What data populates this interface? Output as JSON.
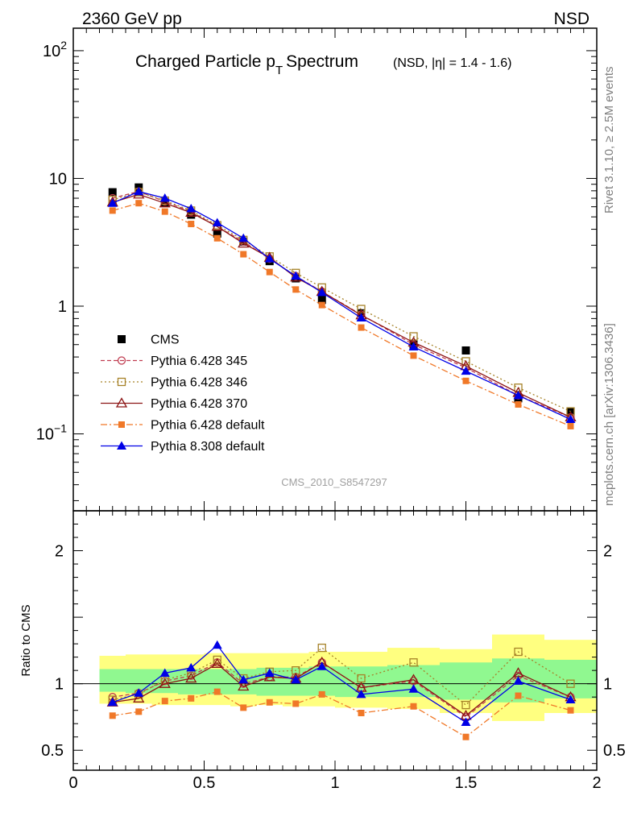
{
  "header": {
    "left": "2360 GeV pp",
    "right": "NSD"
  },
  "side_labels": {
    "rivet": "Rivet 3.1.10, ≥ 2.5M events",
    "mcplots": "mcplots.cern.ch [arXiv:1306.3436]"
  },
  "chart_data": [
    {
      "type": "line",
      "title": "Charged Particle p",
      "title_sub": "T",
      "title_tail": "Spectrum",
      "subtitle": "(NSD, |η| = 1.4 - 1.6)",
      "watermark": "CMS_2010_S8547297",
      "yscale": "log",
      "xlim": [
        0,
        2
      ],
      "ylim": [
        0.025,
        150
      ],
      "yticks": [
        {
          "value": 100,
          "base": "10",
          "exp": "2"
        },
        {
          "value": 10,
          "base": "10",
          "exp": ""
        },
        {
          "value": 1,
          "base": "1",
          "exp": ""
        },
        {
          "value": 0.1,
          "base": "10",
          "exp": "−1"
        }
      ],
      "legend_position": "bottom-left",
      "x": [
        0.15,
        0.25,
        0.35,
        0.45,
        0.55,
        0.65,
        0.75,
        0.85,
        0.95,
        1.1,
        1.3,
        1.5,
        1.7,
        1.9
      ],
      "series": [
        {
          "name": "CMS",
          "color": "#000000",
          "marker": "square-filled",
          "line": "none",
          "values": [
            7.8,
            8.5,
            6.5,
            5.2,
            3.7,
            3.2,
            2.25,
            1.65,
            1.12,
            0.88,
            0.5,
            0.45,
            0.19,
            0.15
          ]
        },
        {
          "name": "Pythia 6.428 345",
          "color": "#c03c50",
          "marker": "circle-open",
          "line": "dashed",
          "values": [
            7.0,
            7.9,
            6.6,
            5.5,
            4.2,
            3.2,
            2.35,
            1.72,
            1.3,
            0.86,
            0.5,
            0.33,
            0.2,
            0.135
          ]
        },
        {
          "name": "Pythia 6.428 346",
          "color": "#a68228",
          "marker": "square-open",
          "line": "dotted",
          "values": [
            6.8,
            7.8,
            6.7,
            5.6,
            4.3,
            3.3,
            2.45,
            1.82,
            1.4,
            0.95,
            0.58,
            0.37,
            0.23,
            0.15
          ]
        },
        {
          "name": "Pythia 6.428 370",
          "color": "#8c1414",
          "marker": "triangle-open",
          "line": "solid",
          "values": [
            6.5,
            7.5,
            6.4,
            5.4,
            4.2,
            3.1,
            2.4,
            1.68,
            1.3,
            0.85,
            0.52,
            0.34,
            0.21,
            0.135
          ]
        },
        {
          "name": "Pythia 6.428 default",
          "color": "#f07828",
          "marker": "square-filled-small",
          "line": "dashdot",
          "values": [
            5.6,
            6.4,
            5.5,
            4.4,
            3.4,
            2.55,
            1.85,
            1.35,
            1.02,
            0.68,
            0.41,
            0.26,
            0.17,
            0.115
          ]
        },
        {
          "name": "Pythia 8.308 default",
          "color": "#0000e6",
          "marker": "triangle-filled",
          "line": "solid",
          "values": [
            6.4,
            7.9,
            7.0,
            5.8,
            4.5,
            3.4,
            2.35,
            1.72,
            1.28,
            0.81,
            0.48,
            0.31,
            0.2,
            0.13
          ]
        }
      ]
    },
    {
      "type": "line",
      "ylabel": "Ratio to CMS",
      "xlim": [
        0,
        2
      ],
      "ylim": [
        0.35,
        2.3
      ],
      "xticks": [
        "0",
        "0.5",
        "1",
        "1.5",
        "2"
      ],
      "yticks": [
        "0.5",
        "1",
        "2"
      ],
      "bands": {
        "yellow_color": "#ffff80",
        "green_color": "#90f890",
        "edges": [
          0.1,
          0.2,
          0.3,
          0.4,
          0.5,
          0.6,
          0.7,
          0.8,
          0.9,
          1.0,
          1.2,
          1.4,
          1.6,
          1.8,
          2.0
        ],
        "yellow_lo": [
          0.85,
          0.85,
          0.84,
          0.84,
          0.84,
          0.83,
          0.84,
          0.83,
          0.83,
          0.82,
          0.81,
          0.78,
          0.72,
          0.78
        ],
        "yellow_hi": [
          1.21,
          1.22,
          1.22,
          1.22,
          1.23,
          1.23,
          1.23,
          1.23,
          1.24,
          1.24,
          1.27,
          1.26,
          1.37,
          1.33
        ],
        "green_lo": [
          0.94,
          0.93,
          0.93,
          0.92,
          0.92,
          0.92,
          0.91,
          0.91,
          0.91,
          0.9,
          0.9,
          0.88,
          0.86,
          0.89
        ],
        "green_hi": [
          1.11,
          1.11,
          1.11,
          1.11,
          1.11,
          1.11,
          1.12,
          1.12,
          1.13,
          1.13,
          1.14,
          1.16,
          1.19,
          1.18
        ]
      },
      "x": [
        0.15,
        0.25,
        0.35,
        0.45,
        0.55,
        0.65,
        0.75,
        0.85,
        0.95,
        1.1,
        1.3,
        1.5,
        1.7,
        1.9
      ],
      "series": [
        {
          "name": "Pythia 6.428 345",
          "values": [
            0.9,
            0.93,
            1.02,
            1.06,
            1.16,
            1.0,
            1.05,
            1.05,
            1.16,
            0.97,
            1.02,
            0.75,
            1.06,
            0.9
          ]
        },
        {
          "name": "Pythia 6.428 346",
          "values": [
            0.88,
            0.92,
            1.03,
            1.08,
            1.18,
            1.04,
            1.09,
            1.1,
            1.27,
            1.04,
            1.16,
            0.84,
            1.24,
            1.0
          ]
        },
        {
          "name": "Pythia 6.428 370",
          "values": [
            0.86,
            0.89,
            1.0,
            1.04,
            1.15,
            0.98,
            1.05,
            1.04,
            1.16,
            0.97,
            1.03,
            0.76,
            1.08,
            0.9
          ]
        },
        {
          "name": "Pythia 6.428 default",
          "values": [
            0.76,
            0.79,
            0.87,
            0.89,
            0.94,
            0.82,
            0.86,
            0.85,
            0.92,
            0.78,
            0.83,
            0.6,
            0.91,
            0.8
          ]
        },
        {
          "name": "Pythia 8.308 default",
          "values": [
            0.86,
            0.93,
            1.08,
            1.12,
            1.29,
            1.03,
            1.08,
            1.03,
            1.13,
            0.92,
            0.96,
            0.71,
            1.02,
            0.88
          ]
        }
      ]
    }
  ]
}
